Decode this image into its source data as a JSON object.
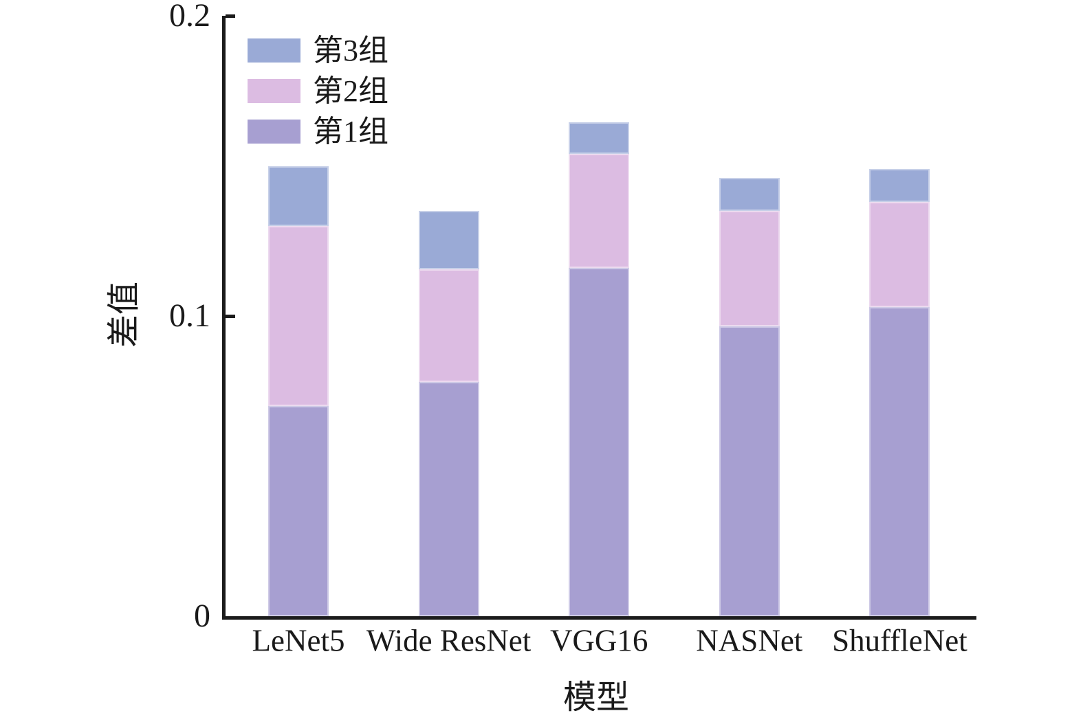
{
  "chart_data": {
    "type": "bar",
    "stacked": true,
    "xlabel": "模型",
    "ylabel": "差值",
    "categories": [
      "LeNet5",
      "Wide ResNet",
      "VGG16",
      "NASNet",
      "ShuffleNet"
    ],
    "series": [
      {
        "name": "第1组",
        "color": "#a79fd1",
        "values": [
          0.07,
          0.078,
          0.116,
          0.0965,
          0.103
        ]
      },
      {
        "name": "第2组",
        "color": "#dcbce2",
        "values": [
          0.06,
          0.0375,
          0.038,
          0.0385,
          0.035
        ]
      },
      {
        "name": "第3组",
        "color": "#9aaad6",
        "values": [
          0.02,
          0.0195,
          0.0105,
          0.011,
          0.011
        ]
      }
    ],
    "ylim": [
      0,
      0.2
    ],
    "yticks": [
      0,
      0.1,
      0.2
    ],
    "ytick_labels": [
      "0",
      "0.1",
      "0.2"
    ],
    "legend": {
      "position": "top-left-inside",
      "entries": [
        "第3组",
        "第2组",
        "第1组"
      ]
    },
    "grid": false,
    "axis_color": "#1b1b1b",
    "background": "#ffffff"
  }
}
